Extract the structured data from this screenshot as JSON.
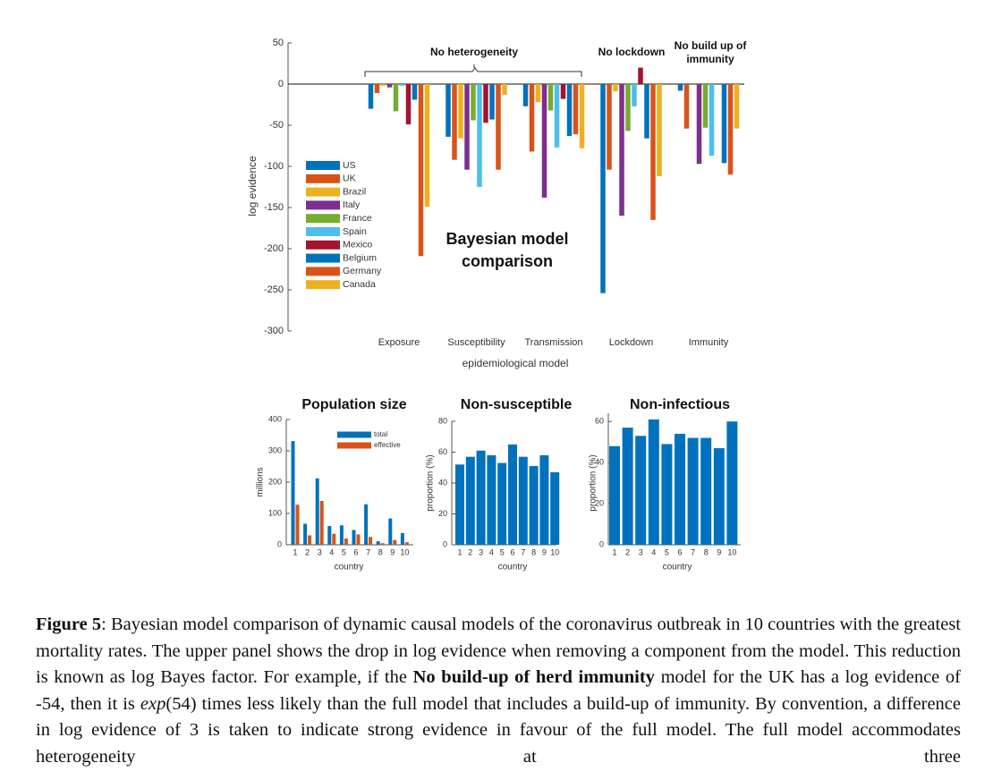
{
  "chart_data": [
    {
      "type": "bar",
      "categories": [
        "Exposure",
        "Susceptibility",
        "Transmission",
        "Lockdown",
        "Immunity"
      ],
      "series": [
        {
          "name": "US",
          "color": "#0072bd",
          "values": [
            -30,
            -64,
            -27,
            -254,
            -8
          ]
        },
        {
          "name": "UK",
          "color": "#d95319",
          "values": [
            -11,
            -92,
            -82,
            -104,
            -54
          ]
        },
        {
          "name": "Brazil",
          "color": "#edb120",
          "values": [
            -2,
            -66,
            -22,
            -9,
            0
          ]
        },
        {
          "name": "Italy",
          "color": "#7e2f8e",
          "values": [
            -4,
            -104,
            -138,
            -160,
            -97
          ]
        },
        {
          "name": "France",
          "color": "#77ac30",
          "values": [
            -33,
            -44,
            -32,
            -57,
            -53
          ]
        },
        {
          "name": "Spain",
          "color": "#4dbeee",
          "values": [
            -2,
            -125,
            -77,
            -27,
            -87
          ]
        },
        {
          "name": "Mexico",
          "color": "#a2142f",
          "values": [
            -49,
            -47,
            -18,
            20,
            0
          ]
        },
        {
          "name": "Belgium",
          "color": "#0072bd",
          "values": [
            -19,
            -43,
            -63,
            -66,
            -96
          ]
        },
        {
          "name": "Germany",
          "color": "#d95319",
          "values": [
            -209,
            -104,
            -61,
            -165,
            -110
          ]
        },
        {
          "name": "Canada",
          "color": "#edb120",
          "values": [
            -149,
            -13,
            -78,
            -112,
            -54
          ]
        }
      ],
      "ylim": [
        -300,
        50
      ],
      "yticks": [
        -300,
        -250,
        -200,
        -150,
        -100,
        -50,
        0,
        50
      ],
      "xlabel": "epidemiological model",
      "ylabel": "log evidence",
      "annotations": [
        "No heterogeneity",
        "No lockdown",
        "No build up of immunity",
        "Bayesian model comparison"
      ],
      "legend": "upper left"
    },
    {
      "type": "bar",
      "title": "Population size",
      "categories": [
        "1",
        "2",
        "3",
        "4",
        "5",
        "6",
        "7",
        "8",
        "9",
        "10"
      ],
      "series": [
        {
          "name": "total",
          "color": "#0072bd",
          "values": [
            331,
            67,
            212,
            60,
            62,
            47,
            129,
            11,
            84,
            37
          ]
        },
        {
          "name": "effective",
          "color": "#d95319",
          "values": [
            128,
            30,
            140,
            35,
            20,
            33,
            25,
            5,
            15,
            8
          ]
        }
      ],
      "ylim": [
        0,
        400
      ],
      "yticks": [
        0,
        100,
        200,
        300,
        400
      ],
      "xlabel": "country",
      "ylabel": "millions",
      "legend": "upper right"
    },
    {
      "type": "bar",
      "title": "Non-susceptible",
      "categories": [
        "1",
        "2",
        "3",
        "4",
        "5",
        "6",
        "7",
        "8",
        "9",
        "10"
      ],
      "values": [
        52,
        57,
        61,
        58,
        53,
        65,
        57,
        51,
        58,
        47
      ],
      "color": "#0072bd",
      "ylim": [
        0,
        80
      ],
      "yticks": [
        0,
        20,
        40,
        60,
        80
      ],
      "xlabel": "country",
      "ylabel": "proportion (%)"
    },
    {
      "type": "bar",
      "title": "Non-infectious",
      "categories": [
        "1",
        "2",
        "3",
        "4",
        "5",
        "6",
        "7",
        "8",
        "9",
        "10"
      ],
      "values": [
        48,
        57,
        53,
        61,
        49,
        54,
        52,
        52,
        47,
        60
      ],
      "color": "#0072bd",
      "ylim": [
        0,
        64
      ],
      "yticks": [
        0,
        20,
        40,
        60
      ],
      "xlabel": "country",
      "ylabel": "proportion (%)"
    }
  ],
  "caption": {
    "label": "Figure 5",
    "text_1": ": Bayesian model comparison of dynamic causal models of the coronavirus outbreak in 10 countries with the greatest mortality rates. The upper panel shows the drop in log evidence when removing a component from the model. This reduction is known as log Bayes factor. For example, if the ",
    "bold": "No build-up of herd immunity",
    "text_2": " model for the UK has a log evidence of -54, then it is ",
    "italic": "exp",
    "text_3": "(54) times less likely than the full model that includes a build-up of immunity. By convention, a difference in log evidence of 3 is taken to indicate strong evidence in favour of the full model. The full model accommodates heterogeneity at three"
  }
}
